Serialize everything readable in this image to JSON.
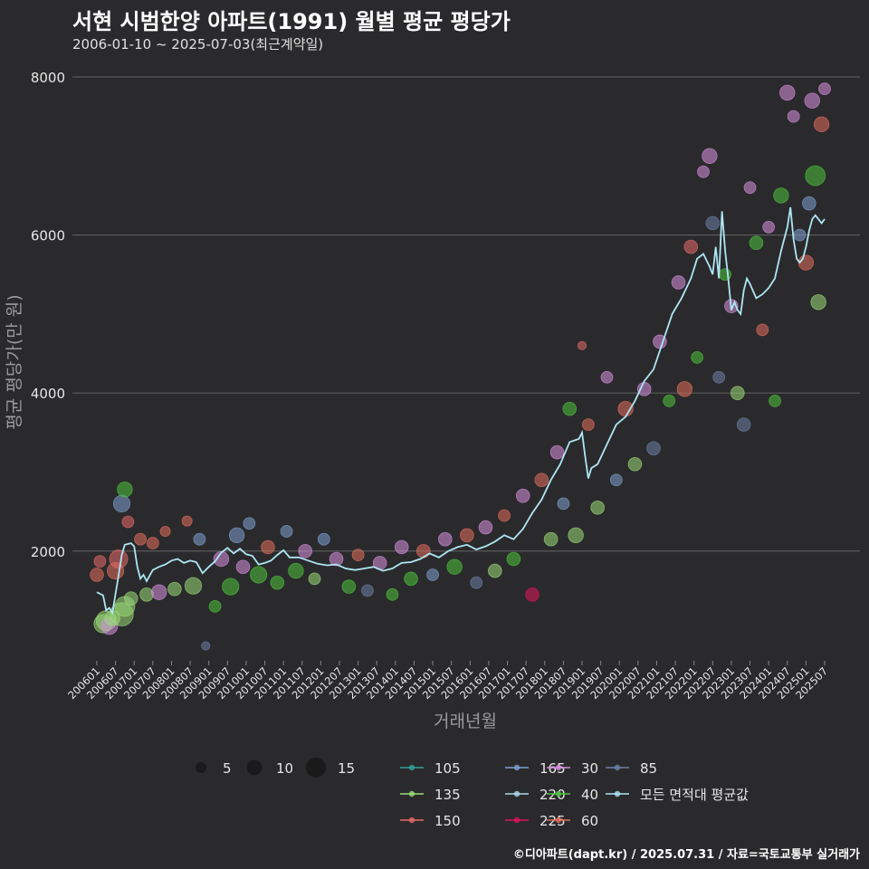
{
  "chart_data": {
    "type": "scatter",
    "title": "서현 시범한양 아파트(1991) 월별 평균 평당가",
    "subtitle": "2006-01-10 ~ 2025-07-03(최근계약일)",
    "caption": "©디아파트(dapt.kr) / 2025.07.31 / 자료=국토교통부 실거래가",
    "xlabel": "거래년월",
    "ylabel": "평균 평당가(만 원)",
    "ylim": [
      600,
      8200
    ],
    "yticks": [
      2000,
      4000,
      6000,
      8000
    ],
    "xticks": [
      "200601",
      "200607",
      "200701",
      "200707",
      "200801",
      "200807",
      "200901",
      "200907",
      "201001",
      "201007",
      "201101",
      "201107",
      "201201",
      "201207",
      "201301",
      "201307",
      "201401",
      "201407",
      "201501",
      "201507",
      "201601",
      "201607",
      "201701",
      "201707",
      "201801",
      "201807",
      "201901",
      "201907",
      "202001",
      "202007",
      "202101",
      "202107",
      "202201",
      "202207",
      "202301",
      "202307",
      "202401",
      "202407",
      "202501",
      "202507"
    ],
    "grid": true,
    "size_legend": {
      "values": [
        5,
        10,
        15
      ],
      "labels": [
        "5",
        "10",
        "15"
      ]
    },
    "legend": [
      {
        "name": "105",
        "color": "#2fa39b"
      },
      {
        "name": "165",
        "color": "#7e9fd0"
      },
      {
        "name": "30",
        "color": "#d78fe0"
      },
      {
        "name": "85",
        "color": "#6c7fa8"
      },
      {
        "name": "135",
        "color": "#9bdb78"
      },
      {
        "name": "220",
        "color": "#b0d8ec"
      },
      {
        "name": "40",
        "color": "#4cc23d"
      },
      {
        "name": "모든 면적대 평균값",
        "color": "#aee6f4"
      },
      {
        "name": "150",
        "color": "#e56a6a"
      },
      {
        "name": "225",
        "color": "#e0145a"
      },
      {
        "name": "60",
        "color": "#e26d5c"
      }
    ],
    "average_series": {
      "name": "모든 면적대 평균값",
      "x": [
        "2006-01",
        "2006-03",
        "2006-04",
        "2006-05",
        "2006-06",
        "2006-08",
        "2006-09",
        "2006-10",
        "2006-12",
        "2007-01",
        "2007-02",
        "2007-03",
        "2007-04",
        "2007-05",
        "2007-07",
        "2007-09",
        "2007-11",
        "2008-01",
        "2008-03",
        "2008-05",
        "2008-07",
        "2008-09",
        "2008-11",
        "2009-01",
        "2009-03",
        "2009-05",
        "2009-07",
        "2009-09",
        "2009-11",
        "2010-01",
        "2010-03",
        "2010-05",
        "2010-07",
        "2010-09",
        "2010-11",
        "2011-01",
        "2011-03",
        "2011-06",
        "2011-09",
        "2011-12",
        "2012-03",
        "2012-06",
        "2012-09",
        "2012-12",
        "2013-03",
        "2013-06",
        "2013-09",
        "2013-12",
        "2014-03",
        "2014-06",
        "2014-09",
        "2014-12",
        "2015-03",
        "2015-06",
        "2015-09",
        "2015-12",
        "2016-03",
        "2016-06",
        "2016-09",
        "2016-12",
        "2017-03",
        "2017-06",
        "2017-09",
        "2017-12",
        "2018-03",
        "2018-06",
        "2018-09",
        "2018-12",
        "2019-01",
        "2019-02",
        "2019-03",
        "2019-04",
        "2019-06",
        "2019-09",
        "2019-12",
        "2020-03",
        "2020-06",
        "2020-09",
        "2020-12",
        "2021-03",
        "2021-06",
        "2021-09",
        "2021-12",
        "2022-02",
        "2022-04",
        "2022-06",
        "2022-07",
        "2022-08",
        "2022-09",
        "2022-10",
        "2022-11",
        "2022-12",
        "2023-01",
        "2023-02",
        "2023-03",
        "2023-04",
        "2023-05",
        "2023-06",
        "2023-07",
        "2023-09",
        "2023-11",
        "2024-01",
        "2024-03",
        "2024-05",
        "2024-07",
        "2024-08",
        "2024-09",
        "2024-10",
        "2024-11",
        "2024-12",
        "2025-01",
        "2025-02",
        "2025-03",
        "2025-04",
        "2025-05",
        "2025-06",
        "2025-07"
      ],
      "y": [
        1480,
        1440,
        1250,
        1280,
        1220,
        1700,
        1950,
        2080,
        2100,
        2060,
        1800,
        1650,
        1700,
        1620,
        1760,
        1800,
        1830,
        1880,
        1900,
        1850,
        1880,
        1860,
        1720,
        1800,
        1870,
        1980,
        2040,
        1970,
        2030,
        1960,
        1940,
        1830,
        1850,
        1880,
        1950,
        2010,
        1920,
        1920,
        1880,
        1840,
        1820,
        1830,
        1780,
        1760,
        1780,
        1800,
        1750,
        1780,
        1850,
        1860,
        1900,
        1970,
        1920,
        2000,
        2050,
        2080,
        2020,
        2060,
        2120,
        2200,
        2150,
        2280,
        2480,
        2650,
        2900,
        3100,
        3380,
        3420,
        3500,
        3200,
        2920,
        3050,
        3100,
        3350,
        3600,
        3700,
        3900,
        4150,
        4300,
        4650,
        5000,
        5200,
        5450,
        5700,
        5760,
        5600,
        5500,
        5850,
        5450,
        6300,
        5800,
        5450,
        5050,
        5150,
        5050,
        5000,
        5300,
        5450,
        5380,
        5200,
        5250,
        5330,
        5450,
        5800,
        6100,
        6350,
        5950,
        5700,
        5650,
        5700,
        5850,
        6050,
        6200,
        6250,
        6200,
        6150,
        6200
      ]
    },
    "points": [
      {
        "x": "2006-01",
        "y": 1700,
        "s": 6,
        "c": "60"
      },
      {
        "x": "2006-02",
        "y": 1870,
        "s": 5,
        "c": "150"
      },
      {
        "x": "2006-03",
        "y": 1080,
        "s": 9,
        "c": "135"
      },
      {
        "x": "2006-04",
        "y": 1120,
        "s": 10,
        "c": "135"
      },
      {
        "x": "2006-05",
        "y": 1050,
        "s": 8,
        "c": "30"
      },
      {
        "x": "2006-06",
        "y": 1150,
        "s": 7,
        "c": "135"
      },
      {
        "x": "2006-07",
        "y": 1750,
        "s": 8,
        "c": "60"
      },
      {
        "x": "2006-08",
        "y": 1900,
        "s": 9,
        "c": "150"
      },
      {
        "x": "2006-09",
        "y": 2600,
        "s": 8,
        "c": "165"
      },
      {
        "x": "2006-09",
        "y": 1200,
        "s": 12,
        "c": "135"
      },
      {
        "x": "2006-10",
        "y": 2780,
        "s": 7,
        "c": "40"
      },
      {
        "x": "2006-10",
        "y": 1300,
        "s": 10,
        "c": "135"
      },
      {
        "x": "2006-11",
        "y": 2370,
        "s": 5,
        "c": "150"
      },
      {
        "x": "2006-12",
        "y": 1400,
        "s": 6,
        "c": "135"
      },
      {
        "x": "2007-03",
        "y": 2150,
        "s": 5,
        "c": "60"
      },
      {
        "x": "2007-05",
        "y": 1450,
        "s": 6,
        "c": "135"
      },
      {
        "x": "2007-07",
        "y": 2100,
        "s": 5,
        "c": "60"
      },
      {
        "x": "2007-09",
        "y": 1480,
        "s": 7,
        "c": "30"
      },
      {
        "x": "2007-11",
        "y": 2250,
        "s": 4,
        "c": "60"
      },
      {
        "x": "2008-02",
        "y": 1520,
        "s": 6,
        "c": "135"
      },
      {
        "x": "2008-06",
        "y": 2380,
        "s": 4,
        "c": "60"
      },
      {
        "x": "2008-08",
        "y": 1560,
        "s": 8,
        "c": "135"
      },
      {
        "x": "2008-10",
        "y": 2150,
        "s": 5,
        "c": "165"
      },
      {
        "x": "2008-12",
        "y": 800,
        "s": 3,
        "c": "85"
      },
      {
        "x": "2009-03",
        "y": 1300,
        "s": 5,
        "c": "40"
      },
      {
        "x": "2009-05",
        "y": 1900,
        "s": 7,
        "c": "30"
      },
      {
        "x": "2009-08",
        "y": 1550,
        "s": 8,
        "c": "40"
      },
      {
        "x": "2009-10",
        "y": 2200,
        "s": 7,
        "c": "165"
      },
      {
        "x": "2009-12",
        "y": 1800,
        "s": 6,
        "c": "30"
      },
      {
        "x": "2010-02",
        "y": 2350,
        "s": 5,
        "c": "165"
      },
      {
        "x": "2010-05",
        "y": 1700,
        "s": 8,
        "c": "40"
      },
      {
        "x": "2010-08",
        "y": 2050,
        "s": 6,
        "c": "60"
      },
      {
        "x": "2010-11",
        "y": 1600,
        "s": 6,
        "c": "40"
      },
      {
        "x": "2011-02",
        "y": 2250,
        "s": 5,
        "c": "165"
      },
      {
        "x": "2011-05",
        "y": 1750,
        "s": 7,
        "c": "40"
      },
      {
        "x": "2011-08",
        "y": 2000,
        "s": 6,
        "c": "30"
      },
      {
        "x": "2011-11",
        "y": 1650,
        "s": 5,
        "c": "135"
      },
      {
        "x": "2012-02",
        "y": 2150,
        "s": 5,
        "c": "165"
      },
      {
        "x": "2012-06",
        "y": 1900,
        "s": 6,
        "c": "30"
      },
      {
        "x": "2012-10",
        "y": 1550,
        "s": 6,
        "c": "40"
      },
      {
        "x": "2013-01",
        "y": 1950,
        "s": 5,
        "c": "60"
      },
      {
        "x": "2013-04",
        "y": 1500,
        "s": 5,
        "c": "85"
      },
      {
        "x": "2013-08",
        "y": 1850,
        "s": 6,
        "c": "30"
      },
      {
        "x": "2013-12",
        "y": 1450,
        "s": 5,
        "c": "40"
      },
      {
        "x": "2014-03",
        "y": 2050,
        "s": 6,
        "c": "30"
      },
      {
        "x": "2014-06",
        "y": 1650,
        "s": 6,
        "c": "40"
      },
      {
        "x": "2014-10",
        "y": 2000,
        "s": 6,
        "c": "60"
      },
      {
        "x": "2015-01",
        "y": 1700,
        "s": 5,
        "c": "165"
      },
      {
        "x": "2015-05",
        "y": 2150,
        "s": 6,
        "c": "30"
      },
      {
        "x": "2015-08",
        "y": 1800,
        "s": 7,
        "c": "40"
      },
      {
        "x": "2015-12",
        "y": 2200,
        "s": 6,
        "c": "60"
      },
      {
        "x": "2016-03",
        "y": 1600,
        "s": 5,
        "c": "85"
      },
      {
        "x": "2016-06",
        "y": 2300,
        "s": 6,
        "c": "30"
      },
      {
        "x": "2016-09",
        "y": 1750,
        "s": 6,
        "c": "135"
      },
      {
        "x": "2016-12",
        "y": 2450,
        "s": 5,
        "c": "60"
      },
      {
        "x": "2017-03",
        "y": 1900,
        "s": 6,
        "c": "40"
      },
      {
        "x": "2017-06",
        "y": 2700,
        "s": 6,
        "c": "30"
      },
      {
        "x": "2017-09",
        "y": 1450,
        "s": 6,
        "c": "225"
      },
      {
        "x": "2017-12",
        "y": 2900,
        "s": 6,
        "c": "60"
      },
      {
        "x": "2018-03",
        "y": 2150,
        "s": 6,
        "c": "135"
      },
      {
        "x": "2018-05",
        "y": 3250,
        "s": 6,
        "c": "30"
      },
      {
        "x": "2018-07",
        "y": 2600,
        "s": 5,
        "c": "165"
      },
      {
        "x": "2018-09",
        "y": 3800,
        "s": 6,
        "c": "40"
      },
      {
        "x": "2018-11",
        "y": 2200,
        "s": 7,
        "c": "135"
      },
      {
        "x": "2019-01",
        "y": 4600,
        "s": 3,
        "c": "150"
      },
      {
        "x": "2019-03",
        "y": 3600,
        "s": 5,
        "c": "60"
      },
      {
        "x": "2019-06",
        "y": 2550,
        "s": 6,
        "c": "135"
      },
      {
        "x": "2019-09",
        "y": 4200,
        "s": 5,
        "c": "30"
      },
      {
        "x": "2019-12",
        "y": 2900,
        "s": 5,
        "c": "165"
      },
      {
        "x": "2020-03",
        "y": 3800,
        "s": 7,
        "c": "60"
      },
      {
        "x": "2020-06",
        "y": 3100,
        "s": 6,
        "c": "135"
      },
      {
        "x": "2020-09",
        "y": 4050,
        "s": 6,
        "c": "30"
      },
      {
        "x": "2020-12",
        "y": 3300,
        "s": 6,
        "c": "85"
      },
      {
        "x": "2021-02",
        "y": 4650,
        "s": 6,
        "c": "30"
      },
      {
        "x": "2021-05",
        "y": 3900,
        "s": 5,
        "c": "40"
      },
      {
        "x": "2021-08",
        "y": 5400,
        "s": 6,
        "c": "30"
      },
      {
        "x": "2021-10",
        "y": 4050,
        "s": 7,
        "c": "60"
      },
      {
        "x": "2021-12",
        "y": 5850,
        "s": 6,
        "c": "150"
      },
      {
        "x": "2022-02",
        "y": 4450,
        "s": 5,
        "c": "40"
      },
      {
        "x": "2022-04",
        "y": 6800,
        "s": 5,
        "c": "30"
      },
      {
        "x": "2022-06",
        "y": 7000,
        "s": 7,
        "c": "30"
      },
      {
        "x": "2022-07",
        "y": 6150,
        "s": 6,
        "c": "85"
      },
      {
        "x": "2022-09",
        "y": 4200,
        "s": 5,
        "c": "85"
      },
      {
        "x": "2022-11",
        "y": 5500,
        "s": 5,
        "c": "40"
      },
      {
        "x": "2023-01",
        "y": 5100,
        "s": 6,
        "c": "30"
      },
      {
        "x": "2023-03",
        "y": 4000,
        "s": 6,
        "c": "135"
      },
      {
        "x": "2023-05",
        "y": 3600,
        "s": 6,
        "c": "85"
      },
      {
        "x": "2023-07",
        "y": 6600,
        "s": 5,
        "c": "30"
      },
      {
        "x": "2023-09",
        "y": 5900,
        "s": 6,
        "c": "40"
      },
      {
        "x": "2023-11",
        "y": 4800,
        "s": 5,
        "c": "60"
      },
      {
        "x": "2024-01",
        "y": 6100,
        "s": 5,
        "c": "30"
      },
      {
        "x": "2024-03",
        "y": 3900,
        "s": 5,
        "c": "40"
      },
      {
        "x": "2024-05",
        "y": 6500,
        "s": 7,
        "c": "40"
      },
      {
        "x": "2024-07",
        "y": 7800,
        "s": 7,
        "c": "30"
      },
      {
        "x": "2024-09",
        "y": 7500,
        "s": 5,
        "c": "30"
      },
      {
        "x": "2024-11",
        "y": 6000,
        "s": 5,
        "c": "165"
      },
      {
        "x": "2025-01",
        "y": 5650,
        "s": 7,
        "c": "60"
      },
      {
        "x": "2025-02",
        "y": 6400,
        "s": 6,
        "c": "165"
      },
      {
        "x": "2025-03",
        "y": 7700,
        "s": 7,
        "c": "30"
      },
      {
        "x": "2025-04",
        "y": 6750,
        "s": 10,
        "c": "40"
      },
      {
        "x": "2025-05",
        "y": 5150,
        "s": 7,
        "c": "135"
      },
      {
        "x": "2025-06",
        "y": 7400,
        "s": 7,
        "c": "60"
      },
      {
        "x": "2025-07",
        "y": 7850,
        "s": 5,
        "c": "30"
      }
    ]
  }
}
